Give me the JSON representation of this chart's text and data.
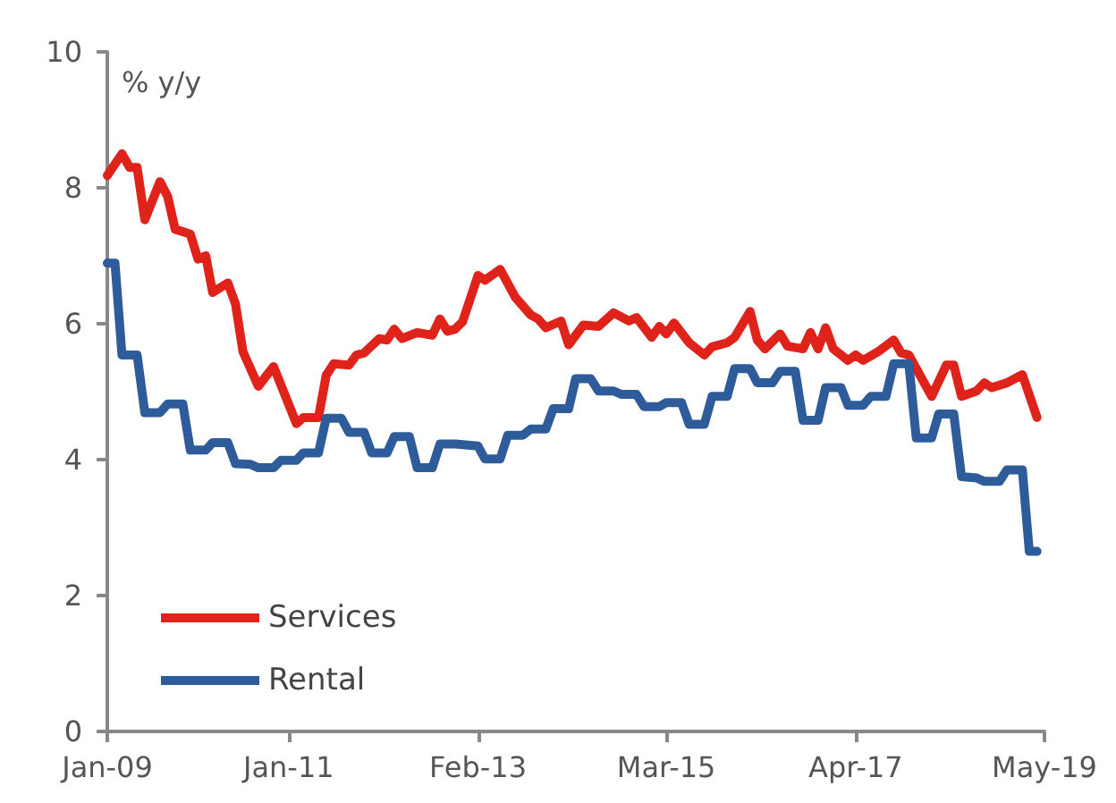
{
  "chart_data": {
    "type": "line",
    "ylabel": "% y/y",
    "xlim": [
      "2009-01",
      "2019-05"
    ],
    "xticks": [
      {
        "value": "2009-01",
        "label": "Jan-09"
      },
      {
        "value": "2011-01",
        "label": "Jan-11"
      },
      {
        "value": "2013-02",
        "label": "Feb-13"
      },
      {
        "value": "2015-03",
        "label": "Mar-15"
      },
      {
        "value": "2017-04",
        "label": "Apr-17"
      },
      {
        "value": "2019-05",
        "label": "May-19"
      }
    ],
    "ylim": [
      0,
      10
    ],
    "yticks": [
      0,
      2,
      4,
      6,
      8,
      10
    ],
    "grid": false,
    "legend": "bottom left",
    "marker": "none",
    "line_style": "solid",
    "series": [
      {
        "name": "Services",
        "color": "#e0231a",
        "x": [
          "2009-01",
          "2009-03",
          "2009-04",
          "2009-05",
          "2009-06",
          "2009-08",
          "2009-09",
          "2009-10",
          "2009-12",
          "2010-01",
          "2010-02",
          "2010-03",
          "2010-05",
          "2010-06",
          "2010-07",
          "2010-09",
          "2010-11",
          "2011-02",
          "2011-03",
          "2011-05",
          "2011-06",
          "2011-07",
          "2011-09",
          "2011-10",
          "2011-11",
          "2012-01",
          "2012-02",
          "2012-03",
          "2012-04",
          "2012-06",
          "2012-08",
          "2012-09",
          "2012-10",
          "2012-11",
          "2012-12",
          "2013-02",
          "2013-03",
          "2013-05",
          "2013-07",
          "2013-09",
          "2013-10",
          "2013-11",
          "2014-01",
          "2014-02",
          "2014-04",
          "2014-06",
          "2014-08",
          "2014-10",
          "2014-11",
          "2015-01",
          "2015-02",
          "2015-03",
          "2015-04",
          "2015-06",
          "2015-08",
          "2015-09",
          "2015-11",
          "2015-12",
          "2016-02",
          "2016-03",
          "2016-04",
          "2016-06",
          "2016-07",
          "2016-09",
          "2016-10",
          "2016-11",
          "2016-12",
          "2017-01",
          "2017-03",
          "2017-04",
          "2017-05",
          "2017-07",
          "2017-09",
          "2017-10",
          "2017-11",
          "2018-02",
          "2018-04",
          "2018-05",
          "2018-06",
          "2018-08",
          "2018-09",
          "2018-10",
          "2018-12",
          "2019-02",
          "2019-04"
        ],
        "values": [
          8.18,
          8.5,
          8.3,
          8.3,
          7.53,
          8.09,
          7.87,
          7.39,
          7.32,
          6.95,
          7.0,
          6.46,
          6.6,
          6.29,
          5.59,
          5.08,
          5.37,
          4.53,
          4.62,
          4.62,
          5.24,
          5.41,
          5.39,
          5.54,
          5.57,
          5.78,
          5.76,
          5.92,
          5.78,
          5.87,
          5.83,
          6.07,
          5.89,
          5.92,
          6.03,
          6.71,
          6.64,
          6.8,
          6.39,
          6.13,
          6.07,
          5.94,
          6.04,
          5.69,
          5.98,
          5.96,
          6.16,
          6.04,
          6.09,
          5.8,
          5.96,
          5.85,
          6.01,
          5.72,
          5.54,
          5.66,
          5.72,
          5.8,
          6.18,
          5.76,
          5.63,
          5.85,
          5.67,
          5.63,
          5.87,
          5.63,
          5.94,
          5.63,
          5.46,
          5.54,
          5.46,
          5.59,
          5.76,
          5.57,
          5.54,
          4.93,
          5.39,
          5.39,
          4.93,
          5.01,
          5.13,
          5.06,
          5.13,
          5.25,
          4.62
        ]
      },
      {
        "name": "Rental",
        "color": "#2e5c9a",
        "x": [
          "2009-01",
          "2009-02",
          "2009-03",
          "2009-05",
          "2009-06",
          "2009-08",
          "2009-09",
          "2009-11",
          "2009-12",
          "2010-02",
          "2010-03",
          "2010-05",
          "2010-06",
          "2010-08",
          "2010-09",
          "2010-11",
          "2010-12",
          "2011-02",
          "2011-03",
          "2011-05",
          "2011-06",
          "2011-08",
          "2011-09",
          "2011-11",
          "2011-12",
          "2012-02",
          "2012-03",
          "2012-05",
          "2012-06",
          "2012-08",
          "2012-09",
          "2012-11",
          "2013-02",
          "2013-03",
          "2013-05",
          "2013-06",
          "2013-08",
          "2013-09",
          "2013-11",
          "2013-12",
          "2014-02",
          "2014-03",
          "2014-05",
          "2014-06",
          "2014-08",
          "2014-09",
          "2014-11",
          "2014-12",
          "2015-02",
          "2015-03",
          "2015-05",
          "2015-06",
          "2015-08",
          "2015-09",
          "2015-11",
          "2015-12",
          "2016-02",
          "2016-03",
          "2016-05",
          "2016-06",
          "2016-08",
          "2016-09",
          "2016-11",
          "2016-12",
          "2017-02",
          "2017-03",
          "2017-05",
          "2017-06",
          "2017-08",
          "2017-09",
          "2017-11",
          "2017-12",
          "2018-02",
          "2018-03",
          "2018-05",
          "2018-06",
          "2018-08",
          "2018-09",
          "2018-11",
          "2018-12",
          "2019-02",
          "2019-03",
          "2019-04"
        ],
        "values": [
          6.89,
          6.89,
          5.54,
          5.54,
          4.69,
          4.69,
          4.82,
          4.82,
          4.14,
          4.14,
          4.25,
          4.25,
          3.94,
          3.93,
          3.88,
          3.88,
          3.99,
          3.99,
          4.1,
          4.1,
          4.61,
          4.61,
          4.4,
          4.4,
          4.1,
          4.1,
          4.34,
          4.34,
          3.88,
          3.88,
          4.23,
          4.23,
          4.2,
          4.01,
          4.01,
          4.36,
          4.36,
          4.45,
          4.45,
          4.75,
          4.75,
          5.19,
          5.19,
          5.01,
          5.01,
          4.96,
          4.96,
          4.78,
          4.78,
          4.84,
          4.84,
          4.52,
          4.52,
          4.93,
          4.93,
          5.34,
          5.34,
          5.13,
          5.13,
          5.3,
          5.3,
          4.58,
          4.58,
          5.06,
          5.06,
          4.8,
          4.8,
          4.93,
          4.93,
          5.41,
          5.41,
          4.32,
          4.32,
          4.67,
          4.67,
          3.75,
          3.73,
          3.68,
          3.68,
          3.85,
          3.85,
          2.65,
          2.65
        ]
      }
    ]
  }
}
